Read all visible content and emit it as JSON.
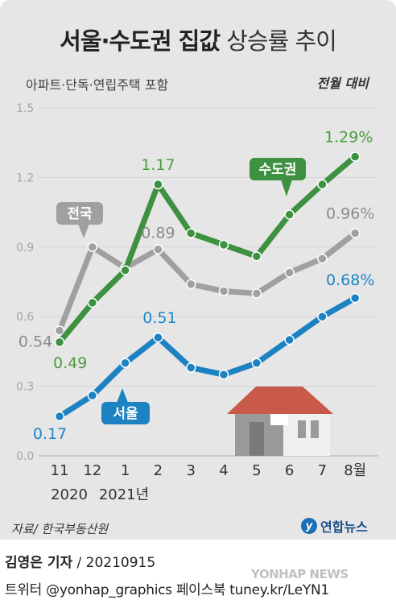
{
  "header": {
    "title_bold": "서울·수도권 집값",
    "title_light": "상승률 추이",
    "subtitle": "아파트·단독·연립주택 포함",
    "unit_note": "전월 대비"
  },
  "colors": {
    "capital": "#3d9140",
    "capital_label": "#4a9e3c",
    "national": "#a0a0a0",
    "national_label": "#8c8c8c",
    "seoul": "#1c82c2",
    "seoul_label": "#1c86c8",
    "axis_text": "#a5a5a5",
    "tick_text": "#333333",
    "house_roof": "#c95a4a",
    "house_body": "#9a9a9a"
  },
  "chart_data": {
    "type": "line",
    "ylim": [
      0,
      1.5
    ],
    "yticks": [
      "0.0",
      "0.3",
      "0.6",
      "0.9",
      "1.2",
      "1.5"
    ],
    "x": [
      "11",
      "12",
      "1",
      "2",
      "3",
      "4",
      "5",
      "6",
      "7",
      "8월"
    ],
    "year_labels": [
      "2020",
      "2021년"
    ],
    "series": [
      {
        "name": "수도권",
        "key": "capital",
        "values": [
          0.49,
          0.66,
          0.8,
          1.17,
          0.96,
          0.91,
          0.86,
          1.04,
          1.17,
          1.29
        ],
        "point_labels": [
          {
            "index": 0,
            "text": "0.49"
          },
          {
            "index": 3,
            "text": "1.17"
          },
          {
            "index": 9,
            "text": "1.29%"
          }
        ]
      },
      {
        "name": "전국",
        "key": "national",
        "values": [
          0.54,
          0.9,
          0.81,
          0.89,
          0.74,
          0.71,
          0.7,
          0.79,
          0.85,
          0.96
        ],
        "point_labels": [
          {
            "index": 0,
            "text": "0.54"
          },
          {
            "index": 3,
            "text": "0.89"
          },
          {
            "index": 9,
            "text": "0.96%"
          }
        ]
      },
      {
        "name": "서울",
        "key": "seoul",
        "values": [
          0.17,
          0.26,
          0.4,
          0.51,
          0.38,
          0.35,
          0.4,
          0.5,
          0.6,
          0.68
        ],
        "point_labels": [
          {
            "index": 0,
            "text": "0.17"
          },
          {
            "index": 3,
            "text": "0.51"
          },
          {
            "index": 9,
            "text": "0.68%"
          }
        ]
      }
    ]
  },
  "footer": {
    "source": "자료/ 한국부동산원",
    "brand": "연합뉴스",
    "brand_mark": "y",
    "reporter": "김영은 기자",
    "credit_rest": " / 20210915",
    "social": "트위터 @yonhap_graphics  페이스북 tuney.kr/LeYN1",
    "watermark": "YONHAP NEWS"
  }
}
